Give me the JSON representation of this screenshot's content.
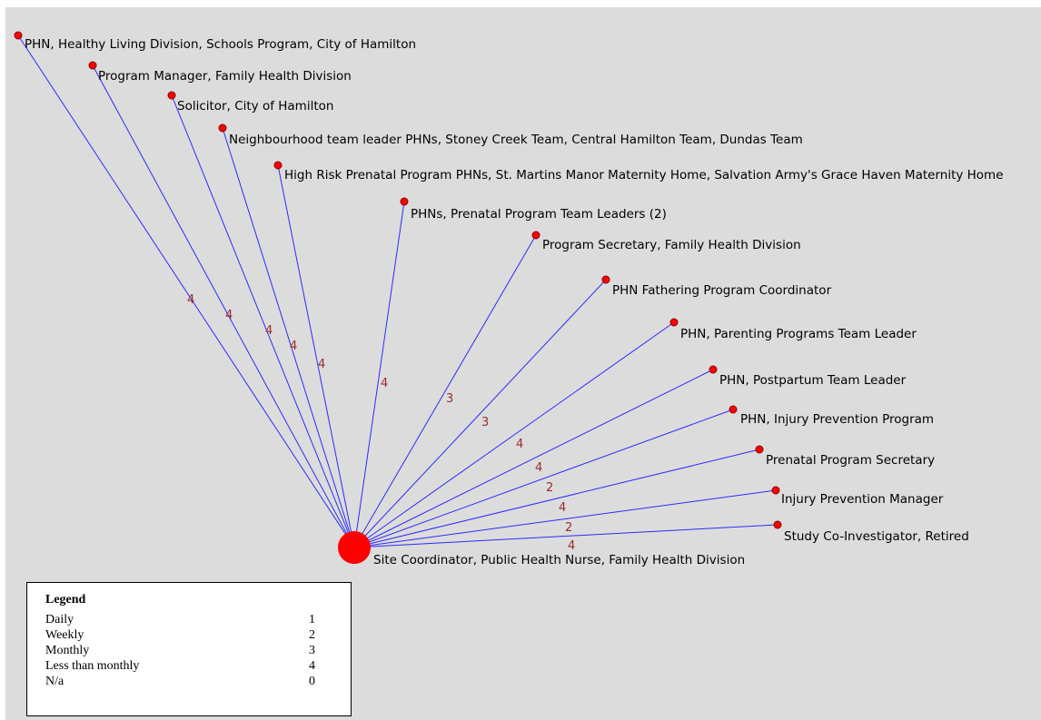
{
  "colors": {
    "background": "#dcdcdc",
    "edge": "#2b2bff",
    "node_fill": "#ff0000",
    "node_stroke": "#8b0000",
    "edge_label": "#9b2a2a"
  },
  "center": {
    "label": "Site Coordinator, Public Health Nurse, Family Health Division"
  },
  "nodes": [
    {
      "label": "PHN, Healthy Living Division, Schools Program, City of Hamilton",
      "weight": "4"
    },
    {
      "label": "Program Manager, Family Health Division",
      "weight": "4"
    },
    {
      "label": "Solicitor, City of Hamilton",
      "weight": "4"
    },
    {
      "label": "Neighbourhood team leader PHNs, Stoney Creek Team, Central Hamilton Team, Dundas Team",
      "weight": "4"
    },
    {
      "label": "High Risk Prenatal Program PHNs, St. Martins Manor Maternity Home, Salvation Army's Grace Haven Maternity Home",
      "weight": "4"
    },
    {
      "label": "PHNs, Prenatal Program Team Leaders (2)",
      "weight": "4"
    },
    {
      "label": "Program Secretary, Family Health Division",
      "weight": "3"
    },
    {
      "label": "PHN Fathering Program Coordinator",
      "weight": "3"
    },
    {
      "label": "PHN, Parenting Programs Team Leader",
      "weight": "4"
    },
    {
      "label": "PHN, Postpartum Team Leader",
      "weight": "4"
    },
    {
      "label": "PHN, Injury Prevention Program",
      "weight": "2"
    },
    {
      "label": "Prenatal Program Secretary",
      "weight": "4"
    },
    {
      "label": "Injury Prevention Manager",
      "weight": "2"
    },
    {
      "label": "Study Co-Investigator, Retired",
      "weight": "4"
    }
  ],
  "legend": {
    "title": "Legend",
    "rows": [
      {
        "label": "Daily",
        "value": "1"
      },
      {
        "label": "Weekly",
        "value": "2"
      },
      {
        "label": "Monthly",
        "value": "3"
      },
      {
        "label": "Less than monthly",
        "value": "4"
      },
      {
        "label": "N/a",
        "value": "0"
      }
    ]
  }
}
